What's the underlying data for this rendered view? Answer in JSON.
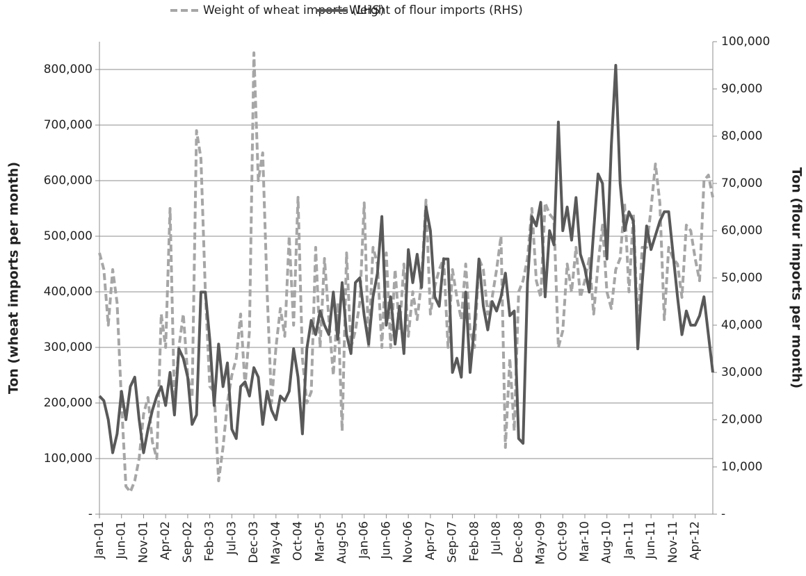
{
  "chart_data": {
    "type": "line",
    "categories": [
      "Jan-01",
      null,
      null,
      null,
      null,
      "Jun-01",
      null,
      null,
      null,
      null,
      "Nov-01",
      null,
      null,
      null,
      null,
      "Apr-02",
      null,
      null,
      null,
      null,
      "Sep-02",
      null,
      null,
      null,
      null,
      "Feb-03",
      null,
      null,
      null,
      null,
      "Jul-03",
      null,
      null,
      null,
      null,
      "Dec-03",
      null,
      null,
      null,
      null,
      "May-04",
      null,
      null,
      null,
      null,
      "Oct-04",
      null,
      null,
      null,
      null,
      "Mar-05",
      null,
      null,
      null,
      null,
      "Aug-05",
      null,
      null,
      null,
      null,
      "Jan-06",
      null,
      null,
      null,
      null,
      "Jun-06",
      null,
      null,
      null,
      null,
      "Nov-06",
      null,
      null,
      null,
      null,
      "Apr-07",
      null,
      null,
      null,
      null,
      "Sep-07",
      null,
      null,
      null,
      null,
      "Feb-08",
      null,
      null,
      null,
      null,
      "Jul-08",
      null,
      null,
      null,
      null,
      "Dec-08",
      null,
      null,
      null,
      null,
      "May-09",
      null,
      null,
      null,
      null,
      "Oct-09",
      null,
      null,
      null,
      null,
      "Mar-10",
      null,
      null,
      null,
      null,
      "Aug-10",
      null,
      null,
      null,
      null,
      "Jan-11",
      null,
      null,
      null,
      null,
      "Jun-11",
      null,
      null,
      null,
      null,
      "Nov-11",
      null,
      null,
      null,
      null,
      "Apr-12",
      null,
      null,
      null,
      null
    ],
    "series": [
      {
        "name": "Weight of wheat imports (LHS)",
        "color": "#a6a6a6",
        "line_style": "dashed",
        "axis": "y",
        "values": [
          470000,
          440000,
          340000,
          440000,
          380000,
          200000,
          50000,
          40000,
          60000,
          100000,
          180000,
          210000,
          130000,
          100000,
          360000,
          300000,
          550000,
          200000,
          300000,
          360000,
          250000,
          210000,
          690000,
          640000,
          400000,
          230000,
          220000,
          60000,
          120000,
          200000,
          250000,
          280000,
          360000,
          230000,
          330000,
          830000,
          600000,
          650000,
          400000,
          200000,
          300000,
          370000,
          320000,
          500000,
          340000,
          570000,
          280000,
          200000,
          220000,
          480000,
          300000,
          460000,
          350000,
          250000,
          380000,
          150000,
          470000,
          300000,
          330000,
          380000,
          560000,
          300000,
          480000,
          450000,
          300000,
          470000,
          300000,
          440000,
          330000,
          450000,
          320000,
          400000,
          350000,
          420000,
          565000,
          360000,
          410000,
          440000,
          460000,
          300000,
          440000,
          390000,
          350000,
          450000,
          330000,
          300000,
          460000,
          440000,
          360000,
          390000,
          440000,
          500000,
          120000,
          280000,
          150000,
          400000,
          420000,
          460000,
          550000,
          420000,
          390000,
          560000,
          540000,
          530000,
          300000,
          330000,
          450000,
          400000,
          480000,
          390000,
          420000,
          460000,
          360000,
          450000,
          520000,
          400000,
          370000,
          440000,
          460000,
          560000,
          400000,
          540000,
          330000,
          480000,
          480000,
          550000,
          630000,
          560000,
          350000,
          480000,
          460000,
          450000,
          390000,
          520000,
          510000,
          460000,
          420000,
          600000,
          610000,
          570000
        ]
      },
      {
        "name": "Weight of flour imports (RHS)",
        "color": "#595959",
        "line_style": "solid",
        "axis": "y2",
        "values": [
          25000,
          24000,
          20000,
          13000,
          17000,
          26000,
          20000,
          27000,
          29000,
          20000,
          13000,
          18000,
          22000,
          25000,
          27000,
          23000,
          30000,
          21000,
          35000,
          33000,
          29000,
          19000,
          21000,
          47000,
          47000,
          37000,
          23000,
          36000,
          27000,
          32000,
          18000,
          16000,
          27000,
          28000,
          25000,
          31000,
          29000,
          19000,
          26000,
          22000,
          20000,
          25000,
          24000,
          26000,
          35000,
          29000,
          17000,
          35000,
          41000,
          38000,
          43000,
          40000,
          38000,
          47000,
          37000,
          49000,
          38000,
          34000,
          49000,
          50000,
          42000,
          36000,
          46000,
          51000,
          63000,
          40000,
          46000,
          36000,
          44000,
          34000,
          56000,
          49000,
          55000,
          48000,
          65000,
          60000,
          46000,
          44000,
          54000,
          54000,
          30000,
          33000,
          29000,
          47000,
          30000,
          40000,
          54000,
          44000,
          39000,
          45000,
          43000,
          46000,
          51000,
          42000,
          43000,
          16000,
          15000,
          49000,
          63000,
          61000,
          66000,
          46000,
          60000,
          57000,
          83000,
          60000,
          65000,
          58000,
          67000,
          55000,
          52000,
          47000,
          60000,
          72000,
          70000,
          54000,
          78000,
          95000,
          70000,
          60000,
          64000,
          62000,
          35000,
          49000,
          61000,
          56000,
          59000,
          62000,
          64000,
          64000,
          55000,
          46000,
          38000,
          43000,
          40000,
          40000,
          42000,
          46000,
          38000,
          30000
        ]
      }
    ],
    "ylabel": "Ton (wheat imports per month)",
    "y2label": "Ton (flour imports per month)",
    "ylim": [
      0,
      850000
    ],
    "yticks": [
      {
        "value": 0,
        "label": "-"
      },
      {
        "value": 100000,
        "label": "100,000"
      },
      {
        "value": 200000,
        "label": "200,000"
      },
      {
        "value": 300000,
        "label": "300,000"
      },
      {
        "value": 400000,
        "label": "400,000"
      },
      {
        "value": 500000,
        "label": "500,000"
      },
      {
        "value": 600000,
        "label": "600,000"
      },
      {
        "value": 700000,
        "label": "700,000"
      },
      {
        "value": 800000,
        "label": "800,000"
      }
    ],
    "y2lim": [
      0,
      100000
    ],
    "y2ticks": [
      {
        "value": 0,
        "label": "-"
      },
      {
        "value": 10000,
        "label": "10,000"
      },
      {
        "value": 20000,
        "label": "20,000"
      },
      {
        "value": 30000,
        "label": "30,000"
      },
      {
        "value": 40000,
        "label": "40,000"
      },
      {
        "value": 50000,
        "label": "50,000"
      },
      {
        "value": 60000,
        "label": "60,000"
      },
      {
        "value": 70000,
        "label": "70,000"
      },
      {
        "value": 80000,
        "label": "80,000"
      },
      {
        "value": 90000,
        "label": "90,000"
      },
      {
        "value": 100000,
        "label": "100,000"
      }
    ],
    "grid": true,
    "legend": "top"
  }
}
